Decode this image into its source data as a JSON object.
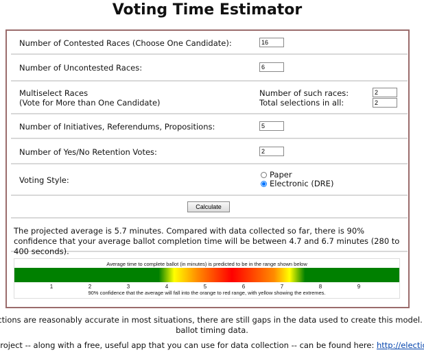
{
  "title": "Voting Time Estimator",
  "form": {
    "contested": {
      "label": "Number of Contested Races (Choose One Candidate):",
      "value": "16"
    },
    "uncontested": {
      "label": "Number of Uncontested Races:",
      "value": "6"
    },
    "multiselect": {
      "label_line1": "Multiselect Races",
      "label_line2": "(Vote for More than One Candidate)",
      "races_label": "Number of such races:",
      "races_value": "2",
      "selections_label": "Total selections in all:",
      "selections_value": "2"
    },
    "initiatives": {
      "label": "Number of Initiatives, Referendums, Propositions:",
      "value": "5"
    },
    "retention": {
      "label": "Number of Yes/No Retention Votes:",
      "value": "2"
    },
    "voting_style": {
      "label": "Voting Style:",
      "options": [
        "Paper",
        "Electronic (DRE)"
      ],
      "selected": "Electronic (DRE)"
    },
    "calculate_label": "Calculate"
  },
  "result": {
    "text": "The projected average is 5.7 minutes. Compared with data collected so far, there is 90% confidence that your average ballot completion time will be between 4.7 and 6.7 minutes (280 to 400 seconds)."
  },
  "scale": {
    "caption": "Average time to complete ballot (in minutes) is predicted to be in the range shown below",
    "ticks": [
      "1",
      "2",
      "3",
      "4",
      "5",
      "6",
      "7",
      "8",
      "9"
    ],
    "note": "90% confidence that the average will fall into the orange to red range, with yellow showing the extremes.",
    "projected_average": 5.7,
    "confidence_low": 4.7,
    "confidence_high": 6.7,
    "colors": {
      "outside": "#008000",
      "extreme": "#ffff00",
      "range": "#ff8c00",
      "center": "#ff0000"
    }
  },
  "footer": {
    "line1": "edictions are reasonably accurate in most situations, there are still gaps in the data used to create this model. You",
    "line2": "ballot timing data.",
    "line3_text": "project -- along with a free, useful app that you can use for data collection -- can be found here: ",
    "line3_link": "http://electionto"
  }
}
